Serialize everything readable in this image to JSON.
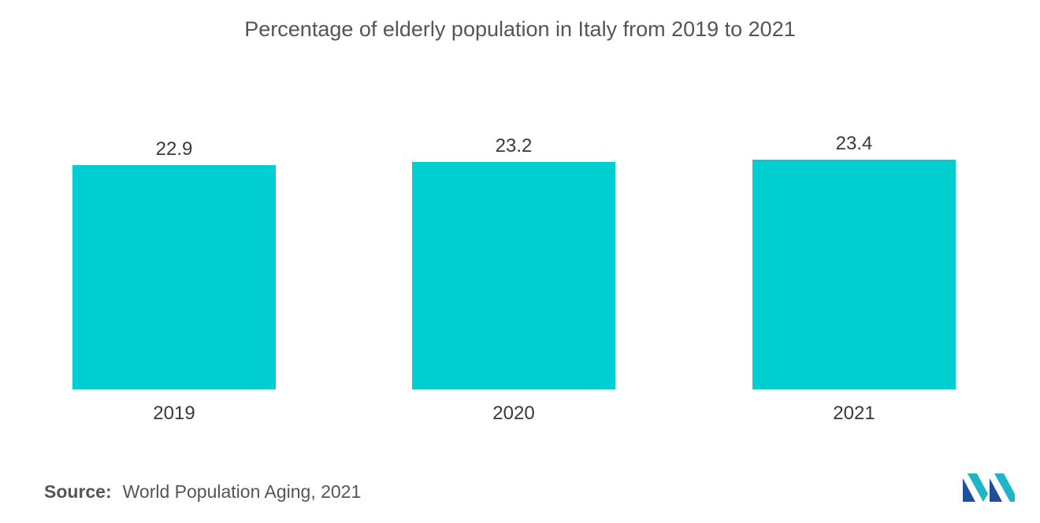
{
  "chart_data": {
    "type": "bar",
    "title": "Percentage of elderly population in Italy from 2019 to 2021",
    "categories": [
      "2019",
      "2020",
      "2021"
    ],
    "values": [
      22.9,
      23.2,
      23.4
    ],
    "value_labels": [
      "22.9",
      "23.2",
      "23.4"
    ],
    "xlabel": "",
    "ylabel": "",
    "grid": false,
    "legend": "none",
    "bar_color": "#00CED1"
  },
  "source": {
    "label": "Source:",
    "text": "World Population Aging, 2021"
  },
  "logo": {
    "name": "mordor-intelligence-logo",
    "colors": [
      "#1f4e9a",
      "#1fb5c9"
    ]
  }
}
